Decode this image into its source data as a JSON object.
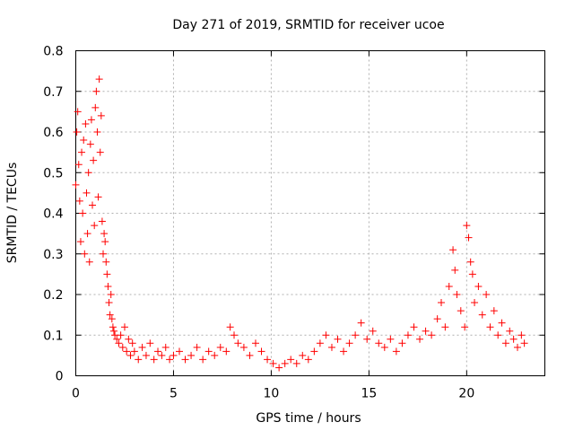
{
  "chart_data": {
    "type": "scatter",
    "title": "Day 271 of 2019, SRMTID for receiver ucoe",
    "xlabel": "GPS time / hours",
    "ylabel": "SRMTID / TECUs",
    "xlim": [
      0,
      24
    ],
    "ylim": [
      0,
      0.8
    ],
    "xticks": [
      0,
      5,
      10,
      15,
      20
    ],
    "xtick_labels": [
      "0",
      "5",
      "10",
      "15",
      "20"
    ],
    "yticks": [
      0,
      0.1,
      0.2,
      0.3,
      0.4,
      0.5,
      0.6,
      0.7,
      0.8
    ],
    "ytick_labels": [
      "0",
      "0.1",
      "0.2",
      "0.3",
      "0.4",
      "0.5",
      "0.6",
      "0.7",
      "0.8"
    ],
    "grid": true,
    "marker": "+",
    "color": "#ff0000",
    "series": [
      {
        "name": "SRMTID",
        "x": [
          0.0,
          0.05,
          0.1,
          0.15,
          0.2,
          0.25,
          0.3,
          0.35,
          0.4,
          0.45,
          0.5,
          0.55,
          0.6,
          0.65,
          0.7,
          0.75,
          0.8,
          0.85,
          0.9,
          0.95,
          1.0,
          1.05,
          1.1,
          1.15,
          1.2,
          1.25,
          1.3,
          1.35,
          1.4,
          1.45,
          1.5,
          1.55,
          1.6,
          1.65,
          1.7,
          1.75,
          1.8,
          1.85,
          1.9,
          1.95,
          2.0,
          2.1,
          2.2,
          2.3,
          2.4,
          2.5,
          2.6,
          2.7,
          2.8,
          2.9,
          3.0,
          3.2,
          3.4,
          3.6,
          3.8,
          4.0,
          4.2,
          4.4,
          4.6,
          4.8,
          5.0,
          5.3,
          5.6,
          5.9,
          6.2,
          6.5,
          6.8,
          7.1,
          7.4,
          7.7,
          7.9,
          8.1,
          8.3,
          8.6,
          8.9,
          9.2,
          9.5,
          9.8,
          10.1,
          10.4,
          10.7,
          11.0,
          11.3,
          11.6,
          11.9,
          12.2,
          12.5,
          12.8,
          13.1,
          13.4,
          13.7,
          14.0,
          14.3,
          14.6,
          14.9,
          15.2,
          15.5,
          15.8,
          16.1,
          16.4,
          16.7,
          17.0,
          17.3,
          17.6,
          17.9,
          18.2,
          18.5,
          18.7,
          18.9,
          19.1,
          19.3,
          19.4,
          19.5,
          19.7,
          19.9,
          20.0,
          20.1,
          20.2,
          20.3,
          20.4,
          20.6,
          20.8,
          21.0,
          21.2,
          21.4,
          21.6,
          21.8,
          22.0,
          22.2,
          22.4,
          22.6,
          22.8,
          22.95
        ],
        "y": [
          0.47,
          0.6,
          0.65,
          0.52,
          0.43,
          0.33,
          0.55,
          0.4,
          0.58,
          0.3,
          0.62,
          0.45,
          0.35,
          0.5,
          0.28,
          0.57,
          0.63,
          0.42,
          0.53,
          0.37,
          0.66,
          0.7,
          0.6,
          0.44,
          0.73,
          0.55,
          0.64,
          0.38,
          0.3,
          0.35,
          0.33,
          0.28,
          0.25,
          0.22,
          0.18,
          0.15,
          0.2,
          0.14,
          0.12,
          0.11,
          0.1,
          0.09,
          0.08,
          0.1,
          0.07,
          0.12,
          0.06,
          0.09,
          0.05,
          0.08,
          0.06,
          0.04,
          0.07,
          0.05,
          0.08,
          0.04,
          0.06,
          0.05,
          0.07,
          0.04,
          0.05,
          0.06,
          0.04,
          0.05,
          0.07,
          0.04,
          0.06,
          0.05,
          0.07,
          0.06,
          0.12,
          0.1,
          0.08,
          0.07,
          0.05,
          0.08,
          0.06,
          0.04,
          0.03,
          0.02,
          0.03,
          0.04,
          0.03,
          0.05,
          0.04,
          0.06,
          0.08,
          0.1,
          0.07,
          0.09,
          0.06,
          0.08,
          0.1,
          0.13,
          0.09,
          0.11,
          0.08,
          0.07,
          0.09,
          0.06,
          0.08,
          0.1,
          0.12,
          0.09,
          0.11,
          0.1,
          0.14,
          0.18,
          0.12,
          0.22,
          0.31,
          0.26,
          0.2,
          0.16,
          0.12,
          0.37,
          0.34,
          0.28,
          0.25,
          0.18,
          0.22,
          0.15,
          0.2,
          0.12,
          0.16,
          0.1,
          0.13,
          0.08,
          0.11,
          0.09,
          0.07,
          0.1,
          0.08
        ]
      }
    ]
  }
}
